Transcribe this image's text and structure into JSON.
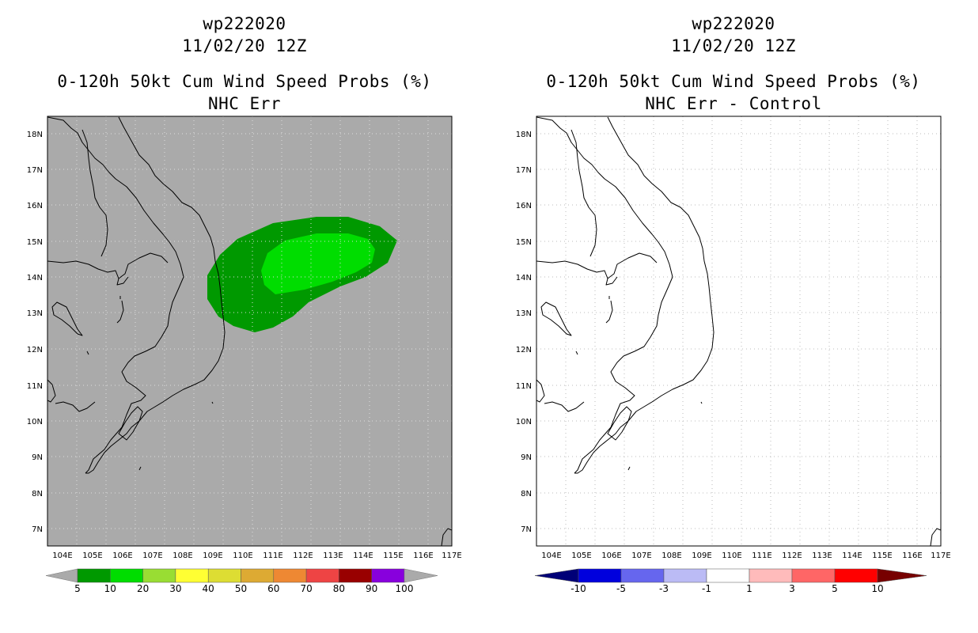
{
  "panels": [
    {
      "storm_id": "wp222020",
      "datetime": "11/02/20 12Z",
      "product": "0-120h 50kt Cum Wind Speed Probs (%)",
      "subtitle": "NHC Err",
      "background": "#aaaaaa",
      "lat_labels": [
        "18N",
        "17N",
        "16N",
        "15N",
        "14N",
        "13N",
        "12N",
        "11N",
        "10N",
        "9N",
        "8N",
        "7N"
      ],
      "lon_labels": [
        "104E",
        "105E",
        "106E",
        "107E",
        "108E",
        "109E",
        "110E",
        "111E",
        "112E",
        "113E",
        "114E",
        "115E",
        "116E",
        "117E"
      ],
      "colorbar": {
        "labels": [
          "5",
          "10",
          "20",
          "30",
          "40",
          "50",
          "60",
          "70",
          "80",
          "90",
          "100"
        ],
        "colors": [
          "#009900",
          "#00dd00",
          "#99dd33",
          "#ffff33",
          "#dddd33",
          "#ddaa33",
          "#ee8833",
          "#ee4444",
          "#990000",
          "#8800dd"
        ],
        "end_color": "#aaaaaa"
      }
    },
    {
      "storm_id": "wp222020",
      "datetime": "11/02/20 12Z",
      "product": "0-120h 50kt Cum Wind Speed Probs (%)",
      "subtitle": "NHC Err - Control",
      "background": "#ffffff",
      "lat_labels": [
        "18N",
        "17N",
        "16N",
        "15N",
        "14N",
        "13N",
        "12N",
        "11N",
        "10N",
        "9N",
        "8N",
        "7N"
      ],
      "lon_labels": [
        "104E",
        "105E",
        "106E",
        "107E",
        "108E",
        "109E",
        "110E",
        "111E",
        "112E",
        "113E",
        "114E",
        "115E",
        "116E",
        "117E"
      ],
      "colorbar": {
        "labels": [
          "-10",
          "-5",
          "-3",
          "-1",
          "1",
          "3",
          "5",
          "10"
        ],
        "colors": [
          "#0000dd",
          "#6666ee",
          "#bbbbf5",
          "#ffffff",
          "#ffbbbb",
          "#ff6666",
          "#ff0000"
        ],
        "left_end_color": "#000077",
        "right_end_color": "#770000"
      }
    }
  ]
}
